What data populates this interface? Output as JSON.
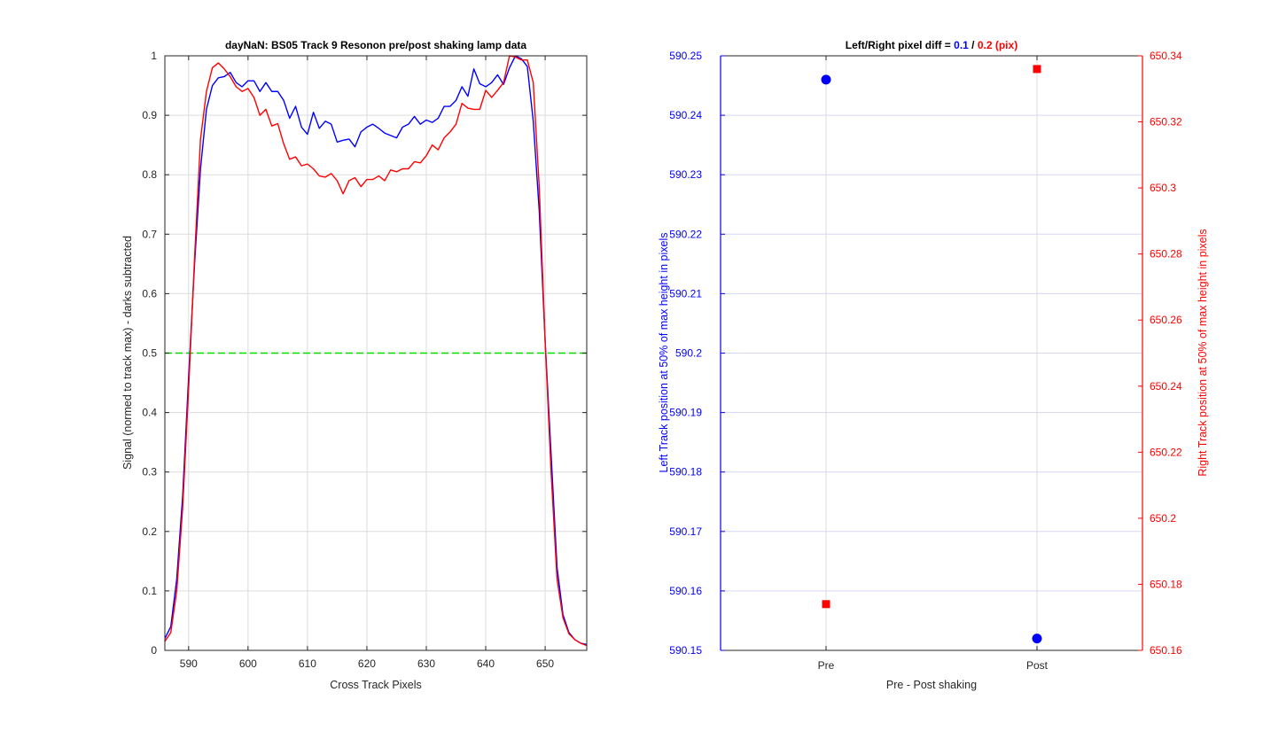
{
  "chart_data": [
    {
      "type": "line",
      "title": "dayNaN: BS05  Track 9 Resonon pre/post shaking lamp data",
      "xlabel": "Cross Track Pixels",
      "ylabel": "Signal (normed to track max) - darks subtracted",
      "xlim": [
        586,
        657
      ],
      "ylim": [
        0,
        1
      ],
      "xticks": [
        590,
        600,
        610,
        620,
        630,
        640,
        650
      ],
      "yticks": [
        0,
        0.1,
        0.2,
        0.3,
        0.4,
        0.5,
        0.6,
        0.7,
        0.8,
        0.9,
        1
      ],
      "grid": true,
      "colors": {
        "pre": "#0000ff",
        "post": "#ff0000",
        "threshold": "#00dd00"
      },
      "threshold_line": {
        "y": 0.5,
        "style": "dashed"
      },
      "x": [
        586,
        587,
        588,
        589,
        590,
        591,
        592,
        593,
        594,
        595,
        596,
        597,
        598,
        599,
        600,
        601,
        602,
        603,
        604,
        605,
        606,
        607,
        608,
        609,
        610,
        611,
        612,
        613,
        614,
        615,
        616,
        617,
        618,
        619,
        620,
        621,
        622,
        623,
        624,
        625,
        626,
        627,
        628,
        629,
        630,
        631,
        632,
        633,
        634,
        635,
        636,
        637,
        638,
        639,
        640,
        641,
        642,
        643,
        644,
        645,
        646,
        647,
        648,
        649,
        650,
        651,
        652,
        653,
        654,
        655,
        656,
        657
      ],
      "series": [
        {
          "key": "pre",
          "values": [
            0.02,
            0.04,
            0.12,
            0.26,
            0.46,
            0.65,
            0.81,
            0.91,
            0.95,
            0.963,
            0.965,
            0.972,
            0.955,
            0.948,
            0.958,
            0.958,
            0.94,
            0.955,
            0.94,
            0.94,
            0.925,
            0.895,
            0.915,
            0.88,
            0.868,
            0.905,
            0.878,
            0.89,
            0.885,
            0.855,
            0.858,
            0.86,
            0.847,
            0.872,
            0.88,
            0.885,
            0.878,
            0.87,
            0.866,
            0.862,
            0.88,
            0.885,
            0.898,
            0.885,
            0.892,
            0.888,
            0.895,
            0.915,
            0.915,
            0.925,
            0.948,
            0.932,
            0.978,
            0.953,
            0.948,
            0.955,
            0.968,
            0.952,
            0.98,
            1.0,
            0.995,
            0.982,
            0.89,
            0.74,
            0.52,
            0.33,
            0.14,
            0.06,
            0.03,
            0.018,
            0.012,
            0.01
          ]
        },
        {
          "key": "post",
          "values": [
            0.015,
            0.03,
            0.1,
            0.24,
            0.44,
            0.66,
            0.86,
            0.94,
            0.98,
            0.988,
            0.978,
            0.965,
            0.948,
            0.94,
            0.945,
            0.93,
            0.9,
            0.91,
            0.882,
            0.886,
            0.852,
            0.826,
            0.83,
            0.815,
            0.818,
            0.81,
            0.798,
            0.796,
            0.802,
            0.79,
            0.768,
            0.79,
            0.795,
            0.78,
            0.792,
            0.792,
            0.798,
            0.79,
            0.808,
            0.805,
            0.81,
            0.81,
            0.822,
            0.82,
            0.832,
            0.85,
            0.842,
            0.862,
            0.872,
            0.885,
            0.92,
            0.912,
            0.91,
            0.91,
            0.942,
            0.93,
            0.942,
            0.955,
            1.0,
            0.998,
            0.993,
            0.993,
            0.955,
            0.78,
            0.52,
            0.3,
            0.12,
            0.055,
            0.028,
            0.018,
            0.012,
            0.008
          ]
        }
      ]
    },
    {
      "type": "scatter",
      "title_prefix": "Left/Right pixel diff = ",
      "title_left_value": "0.1",
      "title_sep": " / ",
      "title_right_value": "0.2 (pix)",
      "xlabel": "Pre - Post shaking",
      "ylabel_left": "Left Track position at 50% of max height in pixels",
      "ylabel_right": "Right Track position at 50% of max height in pixels",
      "categories": [
        "Pre",
        "Post"
      ],
      "ylim_left": [
        590.15,
        590.25
      ],
      "ylim_right": [
        650.16,
        650.34
      ],
      "yticks_left": [
        "590.15",
        "590.16",
        "590.17",
        "590.18",
        "590.19",
        "590.2",
        "590.21",
        "590.22",
        "590.23",
        "590.24",
        "590.25"
      ],
      "yticks_right": [
        "650.16",
        "650.18",
        "650.2",
        "650.22",
        "650.24",
        "650.26",
        "650.28",
        "650.3",
        "650.32",
        "650.34"
      ],
      "grid": true,
      "colors": {
        "left": "#0000ff",
        "right": "#ff0000"
      },
      "series": [
        {
          "axis": "left",
          "marker": "circle",
          "values": [
            590.246,
            590.152
          ]
        },
        {
          "axis": "right",
          "marker": "square",
          "values": [
            650.174,
            650.336
          ]
        }
      ]
    }
  ]
}
